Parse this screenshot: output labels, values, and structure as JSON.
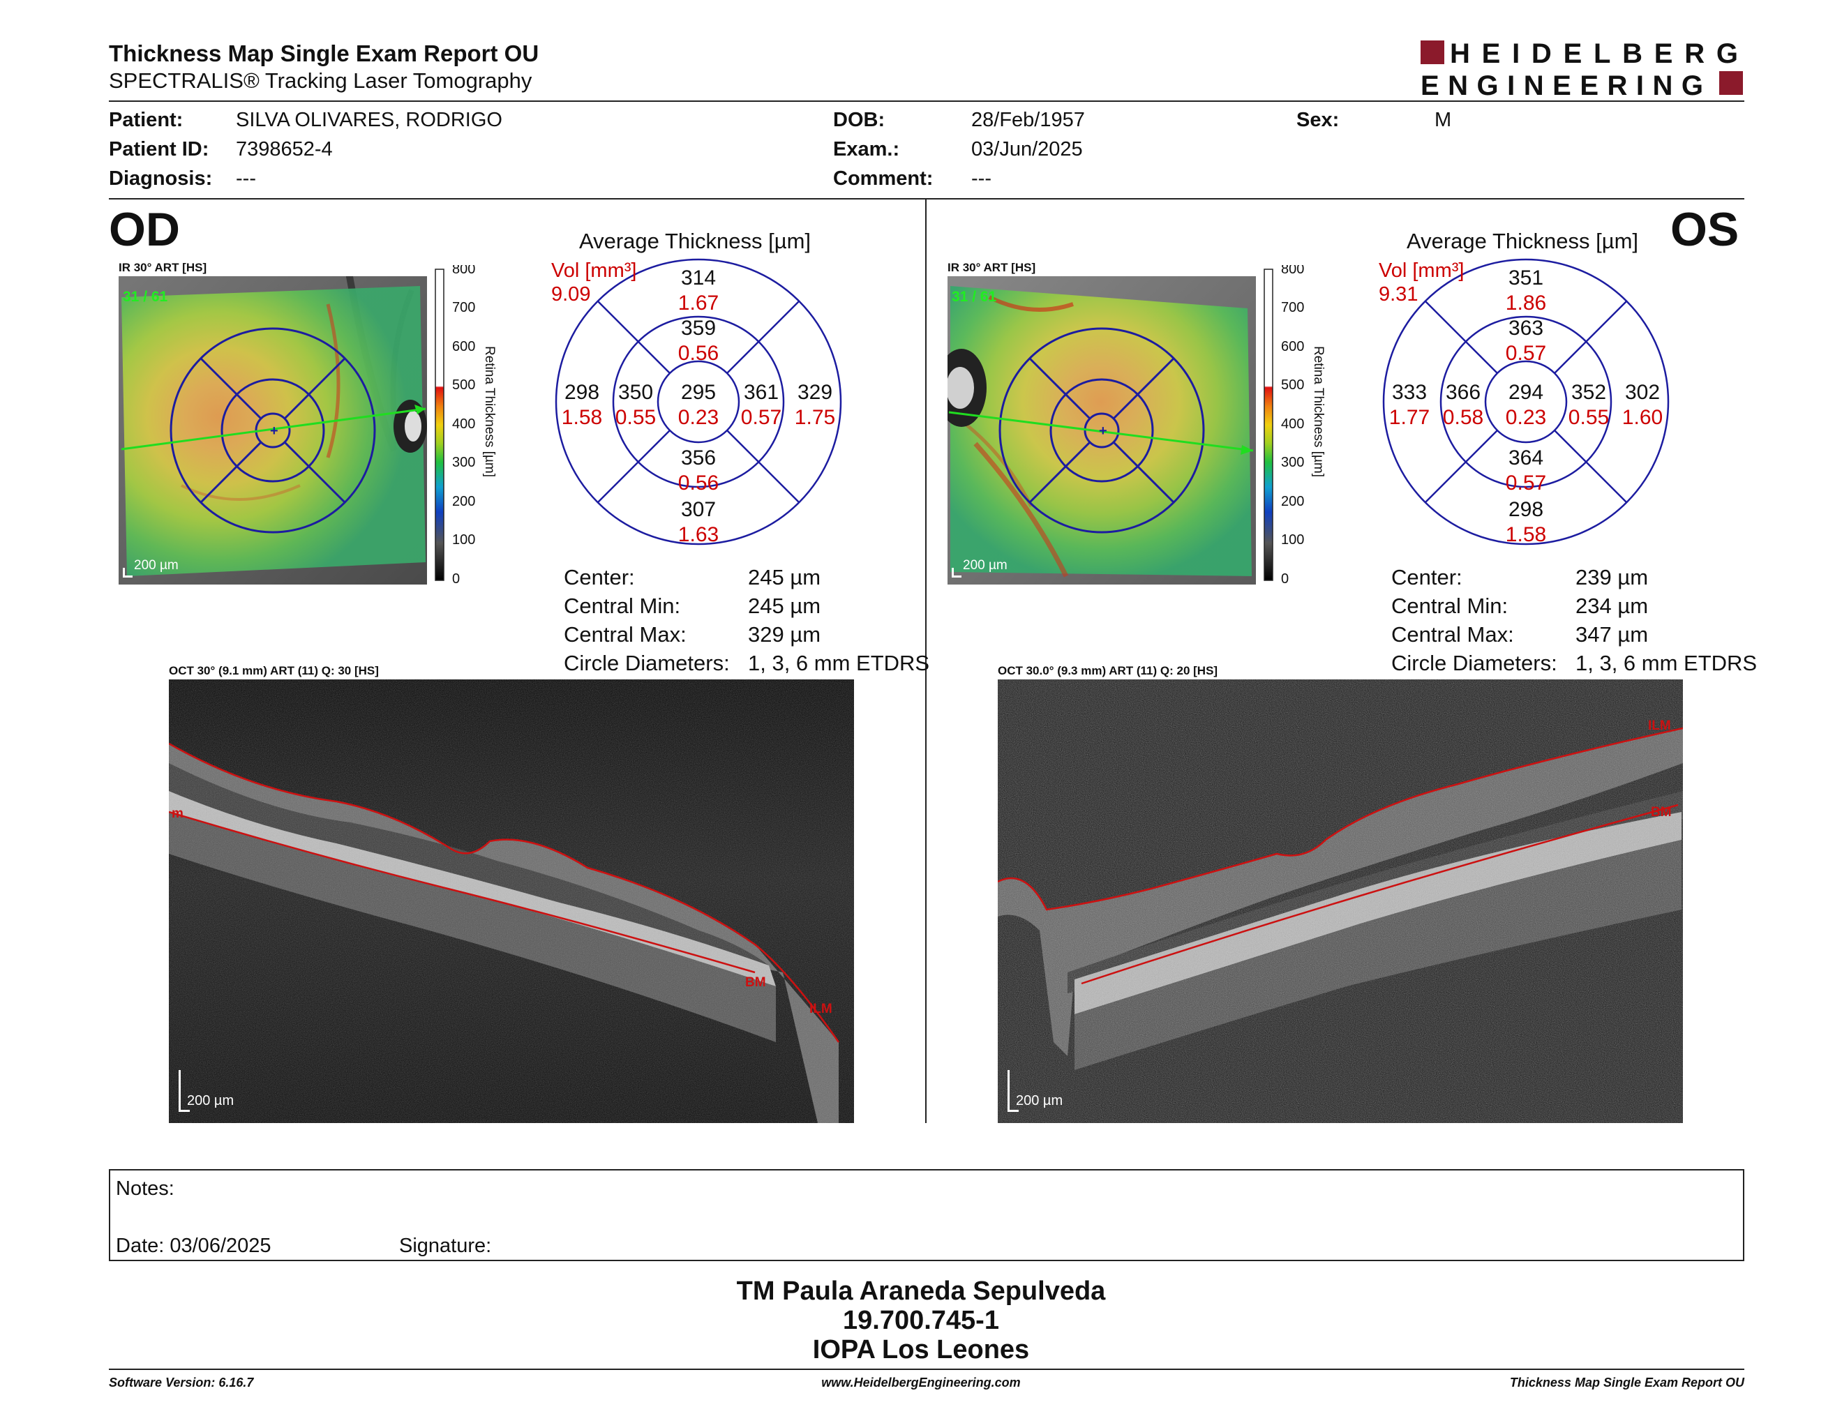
{
  "header": {
    "title": "Thickness Map Single Exam Report OU",
    "subtitle": "SPECTRALIS® Tracking Laser Tomography",
    "logo_line1": "HEIDELBERG",
    "logo_line2": "ENGINEERING"
  },
  "patient": {
    "patient_label": "Patient:",
    "patient_value": "SILVA OLIVARES, RODRIGO",
    "id_label": "Patient ID:",
    "id_value": "7398652-4",
    "diagnosis_label": "Diagnosis:",
    "diagnosis_value": "---",
    "dob_label": "DOB:",
    "dob_value": "28/Feb/1957",
    "exam_label": "Exam.:",
    "exam_value": "03/Jun/2025",
    "comment_label": "Comment:",
    "comment_value": "---",
    "sex_label": "Sex:",
    "sex_value": "M"
  },
  "colors": {
    "accent_red": "#cc0000",
    "logo_red": "#8b1a2b",
    "grid_blue": "#1c1ca0",
    "bm_red": "#cc1111"
  },
  "od": {
    "eye": "OD",
    "ir_label": "IR 30° ART [HS]",
    "frame_label": "31 / 61",
    "scale_label": "200 µm",
    "colorbar_ticks": [
      "800",
      "700",
      "600",
      "500",
      "400",
      "300",
      "200",
      "100",
      "0"
    ],
    "colorbar_title": "Retina  Thickness [µm]",
    "avg_title": "Average Thickness [µm]",
    "vol_label": "Vol [mm³]",
    "vol_value": "9.09",
    "sectors": {
      "outer_top": {
        "t": "314",
        "v": "1.67"
      },
      "inner_top": {
        "t": "359",
        "v": "0.56"
      },
      "outer_left": {
        "t": "298",
        "v": "1.58"
      },
      "inner_left": {
        "t": "350",
        "v": "0.55"
      },
      "center": {
        "t": "295",
        "v": "0.23"
      },
      "inner_right": {
        "t": "361",
        "v": "0.57"
      },
      "outer_right": {
        "t": "329",
        "v": "1.75"
      },
      "inner_bottom": {
        "t": "356",
        "v": "0.56"
      },
      "outer_bottom": {
        "t": "307",
        "v": "1.63"
      }
    },
    "stats": {
      "center_label": "Center:",
      "center_value": "245 µm",
      "min_label": "Central Min:",
      "min_value": "245 µm",
      "max_label": "Central Max:",
      "max_value": "329 µm",
      "diam_label": "Circle Diameters:",
      "diam_value": "1, 3, 6 mm ETDRS"
    },
    "oct_label": "OCT 30° (9.1 mm) ART (11) Q: 30 [HS]",
    "oct_scale_label": "200 µm",
    "layer_labels": [
      "m",
      "BM",
      "ILM"
    ]
  },
  "os": {
    "eye": "OS",
    "ir_label": "IR 30° ART [HS]",
    "frame_label": "31 / 61",
    "scale_label": "200 µm",
    "colorbar_ticks": [
      "800",
      "700",
      "600",
      "500",
      "400",
      "300",
      "200",
      "100",
      "0"
    ],
    "colorbar_title": "Retina  Thickness [µm]",
    "avg_title": "Average Thickness [µm]",
    "vol_label": "Vol [mm³]",
    "vol_value": "9.31",
    "sectors": {
      "outer_top": {
        "t": "351",
        "v": "1.86"
      },
      "inner_top": {
        "t": "363",
        "v": "0.57"
      },
      "outer_left": {
        "t": "333",
        "v": "1.77"
      },
      "inner_left": {
        "t": "366",
        "v": "0.58"
      },
      "center": {
        "t": "294",
        "v": "0.23"
      },
      "inner_right": {
        "t": "352",
        "v": "0.55"
      },
      "outer_right": {
        "t": "302",
        "v": "1.60"
      },
      "inner_bottom": {
        "t": "364",
        "v": "0.57"
      },
      "outer_bottom": {
        "t": "298",
        "v": "1.58"
      }
    },
    "stats": {
      "center_label": "Center:",
      "center_value": "239 µm",
      "min_label": "Central Min:",
      "min_value": "234 µm",
      "max_label": "Central Max:",
      "max_value": "347 µm",
      "diam_label": "Circle Diameters:",
      "diam_value": "1, 3, 6 mm ETDRS"
    },
    "oct_label": "OCT 30.0° (9.3 mm) ART (11) Q: 20 [HS]",
    "oct_scale_label": "200 µm",
    "layer_labels": [
      "ILM",
      "BM"
    ]
  },
  "notes": {
    "notes_label": "Notes:",
    "date_label": "Date: 03/06/2025",
    "signature_label": "Signature:"
  },
  "signature": {
    "line1": "TM Paula Araneda Sepulveda",
    "line2": "19.700.745-1",
    "line3": "IOPA Los Leones"
  },
  "footer": {
    "software": "Software Version: 6.16.7",
    "website": "www.HeidelbergEngineering.com",
    "report": "Thickness Map Single Exam Report OU"
  }
}
